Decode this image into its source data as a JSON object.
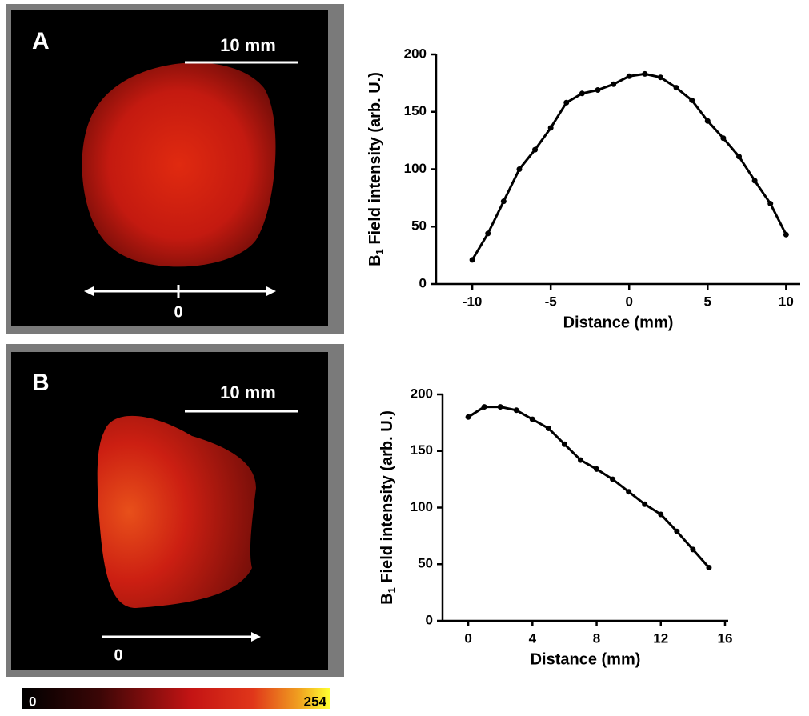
{
  "images": [
    {
      "label": "A",
      "scale_label": "10 mm",
      "origin_label": "0"
    },
    {
      "label": "B",
      "scale_label": "10 mm",
      "origin_label": "0"
    }
  ],
  "colorbar": {
    "min": 0,
    "max": 254
  },
  "chart_data": [
    {
      "type": "line",
      "xlabel": "Distance (mm)",
      "ylabel_symbol": "B",
      "ylabel_subscript": "1",
      "ylabel": " Field intensity (arb. U.)",
      "x": [
        -10,
        -9,
        -8,
        -7,
        -6,
        -5,
        -4,
        -3,
        -2,
        -1,
        0,
        1,
        2,
        3,
        4,
        5,
        6,
        7,
        8,
        9,
        10
      ],
      "values": [
        21,
        44,
        72,
        100,
        117,
        136,
        158,
        166,
        169,
        174,
        181,
        183,
        180,
        171,
        160,
        142,
        127,
        111,
        90,
        70,
        43
      ],
      "color": "#000000",
      "xlim": [
        -12.3,
        10.9
      ],
      "xticks": [
        -10,
        -5,
        0,
        5,
        10
      ],
      "ylim": [
        0,
        200
      ],
      "yticks": [
        0,
        50,
        100,
        150,
        200
      ]
    },
    {
      "type": "line",
      "xlabel": "Distance (mm)",
      "ylabel_symbol": "B",
      "ylabel_subscript": "1",
      "ylabel": " Field intensity (arb. U.)",
      "x": [
        0,
        1,
        2,
        3,
        4,
        5,
        6,
        7,
        8,
        9,
        10,
        11,
        12,
        13,
        14,
        15
      ],
      "values": [
        180,
        189,
        189,
        186,
        178,
        170,
        156,
        142,
        134,
        125,
        114,
        103,
        94,
        79,
        63,
        47
      ],
      "color": "#000000",
      "xlim": [
        -1.6,
        16.2
      ],
      "xticks": [
        0,
        4,
        8,
        12,
        16
      ],
      "ylim": [
        0,
        200
      ],
      "yticks": [
        0,
        50,
        100,
        150,
        200
      ]
    }
  ]
}
